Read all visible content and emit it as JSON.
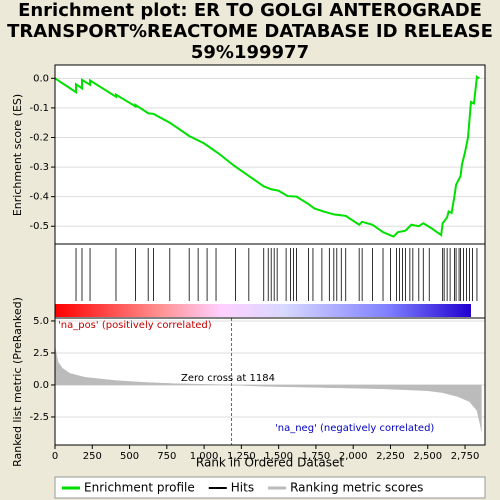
{
  "chart_data": [
    {
      "type": "line",
      "title": "Enrichment plot: ER TO GOLGI ANTEROGRADE TRANSPORT%REACTOME DATABASE ID RELEASE 59%199977",
      "ylabel": "Enrichment score (ES)",
      "ylim": [
        -0.56,
        0.045
      ],
      "yticks": [
        {
          "value": 0,
          "label": "0.0"
        },
        -0.1,
        -0.2,
        -0.3,
        -0.4,
        -0.5
      ],
      "series": [
        {
          "name": "Enrichment profile",
          "color": "#00e000",
          "x": [
            0,
            141,
            141,
            181,
            181,
            235,
            235,
            409,
            409,
            540,
            540,
            625,
            660,
            770,
            900,
            1000,
            1100,
            1200,
            1300,
            1400,
            1450,
            1500,
            1560,
            1620,
            1700,
            1740,
            1800,
            1870,
            1950,
            2040,
            2060,
            2130,
            2200,
            2270,
            2300,
            2350,
            2390,
            2440,
            2470,
            2520,
            2590,
            2600,
            2630,
            2640,
            2660,
            2680,
            2690,
            2720,
            2730,
            2750,
            2770,
            2790,
            2810,
            2830,
            2845
          ],
          "values": [
            0,
            -0.047,
            -0.02,
            -0.034,
            -0.005,
            -0.022,
            -0.007,
            -0.062,
            -0.055,
            -0.095,
            -0.09,
            -0.118,
            -0.12,
            -0.15,
            -0.195,
            -0.22,
            -0.255,
            -0.295,
            -0.33,
            -0.365,
            -0.375,
            -0.38,
            -0.398,
            -0.4,
            -0.425,
            -0.44,
            -0.45,
            -0.46,
            -0.465,
            -0.495,
            -0.485,
            -0.495,
            -0.52,
            -0.535,
            -0.52,
            -0.515,
            -0.495,
            -0.5,
            -0.49,
            -0.505,
            -0.53,
            -0.49,
            -0.47,
            -0.45,
            -0.455,
            -0.395,
            -0.36,
            -0.33,
            -0.29,
            -0.25,
            -0.2,
            -0.08,
            -0.085,
            0.005,
            0
          ]
        }
      ]
    },
    {
      "type": "hits",
      "name": "Hits",
      "color": "#000000",
      "x": [
        141,
        181,
        235,
        409,
        540,
        625,
        660,
        770,
        900,
        960,
        1020,
        1080,
        1210,
        1300,
        1400,
        1430,
        1450,
        1470,
        1490,
        1550,
        1580,
        1600,
        1620,
        1700,
        1730,
        1790,
        1840,
        1870,
        1890,
        1920,
        1950,
        2040,
        2060,
        2130,
        2200,
        2250,
        2290,
        2310,
        2330,
        2350,
        2380,
        2400,
        2440,
        2470,
        2510,
        2600,
        2610,
        2630,
        2650,
        2680,
        2690,
        2710,
        2720,
        2740,
        2760,
        2780,
        2800,
        2830
      ]
    },
    {
      "type": "area",
      "xlabel": "Rank in Ordered Dataset",
      "ylabel": "Ranked list metric (PreRanked)",
      "xlim": [
        0,
        2884
      ],
      "xticks": [
        0,
        250,
        500,
        750,
        {
          "value": 1000,
          "label": "1,000"
        },
        {
          "value": 1250,
          "label": "1,250"
        },
        {
          "value": 1500,
          "label": "1,500"
        },
        {
          "value": 1750,
          "label": "1,750"
        },
        {
          "value": 2000,
          "label": "2,000"
        },
        {
          "value": 2250,
          "label": "2,250"
        },
        {
          "value": 2500,
          "label": "2,500"
        },
        {
          "value": 2750,
          "label": "2,750"
        }
      ],
      "ylim": [
        -4.69,
        5.23
      ],
      "yticks": [
        {
          "value": 5,
          "label": "5.0"
        },
        2.5,
        {
          "value": 0,
          "label": "0.0"
        },
        -2.5
      ],
      "zero_cross": 1184,
      "zero_cross_label": "Zero cross at 1184",
      "pos_label": "'na_pos' (positively correlated)",
      "neg_label": "'na_neg' (negatively correlated)",
      "series": [
        {
          "name": "Ranking metric scores",
          "color": "#bbbbbb",
          "x": [
            0,
            20,
            50,
            100,
            200,
            400,
            600,
            800,
            1000,
            1184,
            1400,
            1800,
            2200,
            2500,
            2600,
            2700,
            2780,
            2830,
            2850,
            2860
          ],
          "values": [
            3.0,
            1.8,
            1.3,
            0.9,
            0.6,
            0.35,
            0.2,
            0.1,
            0.05,
            0,
            -0.1,
            -0.2,
            -0.3,
            -0.45,
            -0.6,
            -0.9,
            -1.3,
            -2.0,
            -3.0,
            -3.6
          ]
        }
      ]
    }
  ]
}
